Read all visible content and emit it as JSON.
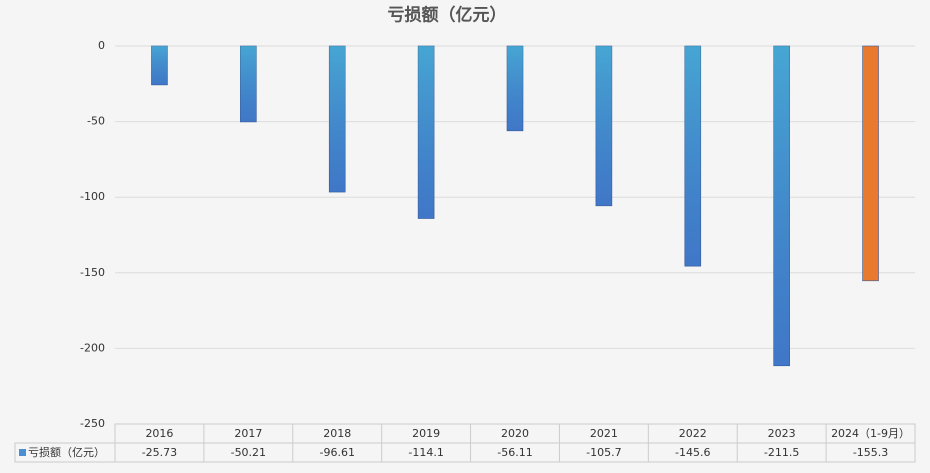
{
  "chart_data": {
    "type": "bar",
    "title": "亏损额（亿元）",
    "categories": [
      "2016",
      "2017",
      "2018",
      "2019",
      "2020",
      "2021",
      "2022",
      "2023",
      "2024（1-9月）"
    ],
    "series": [
      {
        "name": "亏损额（亿元）",
        "color": "#4a8fd4",
        "colors": [
          "#4a8fd4",
          "#4a8fd4",
          "#4a8fd4",
          "#4a8fd4",
          "#4a8fd4",
          "#4a8fd4",
          "#4a8fd4",
          "#4a8fd4",
          "#e8792f"
        ],
        "values": [
          -25.73,
          -50.21,
          -96.61,
          -114.1,
          -56.11,
          -105.7,
          -145.6,
          -211.5,
          -155.3
        ]
      }
    ],
    "ylim": [
      -250,
      0
    ],
    "yticks": [
      0,
      -50,
      -100,
      -150,
      -200,
      -250
    ],
    "grid": true,
    "data_table": true
  }
}
